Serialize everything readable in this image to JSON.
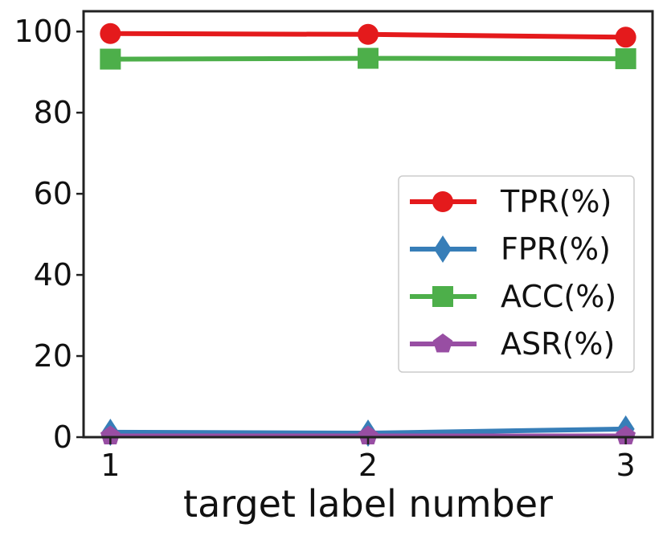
{
  "chart_data": {
    "type": "line",
    "xlabel": "target label number",
    "ylabel": "",
    "x": [
      1,
      2,
      3
    ],
    "xticks": [
      "1",
      "2",
      "3"
    ],
    "yticks": [
      "0",
      "20",
      "40",
      "60",
      "80",
      "100"
    ],
    "ylim": [
      0,
      105
    ],
    "grid": false,
    "legend_position": "center-right",
    "series": [
      {
        "name": "TPR(%)",
        "values": [
          99.5,
          99.3,
          98.6
        ],
        "color": "#e41a1c",
        "marker": "circle"
      },
      {
        "name": "FPR(%)",
        "values": [
          1.2,
          1.0,
          2.0
        ],
        "color": "#377eb8",
        "marker": "diamond"
      },
      {
        "name": "ACC(%)",
        "values": [
          93.2,
          93.4,
          93.3
        ],
        "color": "#4daf4a",
        "marker": "square"
      },
      {
        "name": "ASR(%)",
        "values": [
          0.3,
          0.3,
          0.3
        ],
        "color": "#984ea3",
        "marker": "pentagon"
      }
    ]
  }
}
